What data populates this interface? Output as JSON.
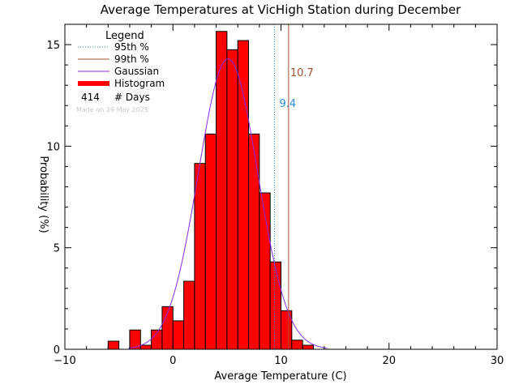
{
  "chart_data": {
    "type": "bar",
    "title": "Average Temperatures at VicHigh Station during December",
    "xlabel": "Average Temperature (C)",
    "ylabel": "Probability (%)",
    "xlim": [
      -10,
      30
    ],
    "ylim": [
      0,
      16
    ],
    "xticks": [
      -10,
      0,
      10,
      20,
      30
    ],
    "yticks": [
      0,
      5,
      10,
      15
    ],
    "bin_width": 1,
    "bins": [
      {
        "x0": -6,
        "value": 0.4
      },
      {
        "x0": -5,
        "value": 0.0
      },
      {
        "x0": -4,
        "value": 0.95
      },
      {
        "x0": -3,
        "value": 0.2
      },
      {
        "x0": -2,
        "value": 0.95
      },
      {
        "x0": -1,
        "value": 2.1
      },
      {
        "x0": 0,
        "value": 1.4
      },
      {
        "x0": 1,
        "value": 3.35
      },
      {
        "x0": 2,
        "value": 9.15
      },
      {
        "x0": 3,
        "value": 10.6
      },
      {
        "x0": 4,
        "value": 15.65
      },
      {
        "x0": 5,
        "value": 14.75
      },
      {
        "x0": 6,
        "value": 15.2
      },
      {
        "x0": 7,
        "value": 10.6
      },
      {
        "x0": 8,
        "value": 7.7
      },
      {
        "x0": 9,
        "value": 4.3
      },
      {
        "x0": 10,
        "value": 1.9
      },
      {
        "x0": 11,
        "value": 0.45
      },
      {
        "x0": 12,
        "value": 0.2
      }
    ],
    "gaussian": {
      "mean": 5.1,
      "sigma": 2.75,
      "peak": 14.3
    },
    "percentile_95": {
      "value": 9.4,
      "label": "9.4",
      "color": "#2a8fd6"
    },
    "percentile_99": {
      "value": 10.7,
      "label": "10.7",
      "color": "#a0522d"
    },
    "legend": {
      "title": "Legend",
      "placement": "top-left",
      "items": [
        {
          "label": "95th %",
          "style": "dotted",
          "color": "#2a8fd6"
        },
        {
          "label": "99th %",
          "style": "solid",
          "color": "#a0522d"
        },
        {
          "label": "Gaussian",
          "style": "solid",
          "color": "#8a2be2"
        },
        {
          "label": "Histogram",
          "style": "thick",
          "color": "#ff0000"
        }
      ],
      "days_count": "414",
      "days_label": "# Days"
    },
    "watermark": "Made on 29 May 2025",
    "colors": {
      "histogram": "#ff0000",
      "gaussian": "#8a2be2",
      "axes": "#000000"
    }
  }
}
